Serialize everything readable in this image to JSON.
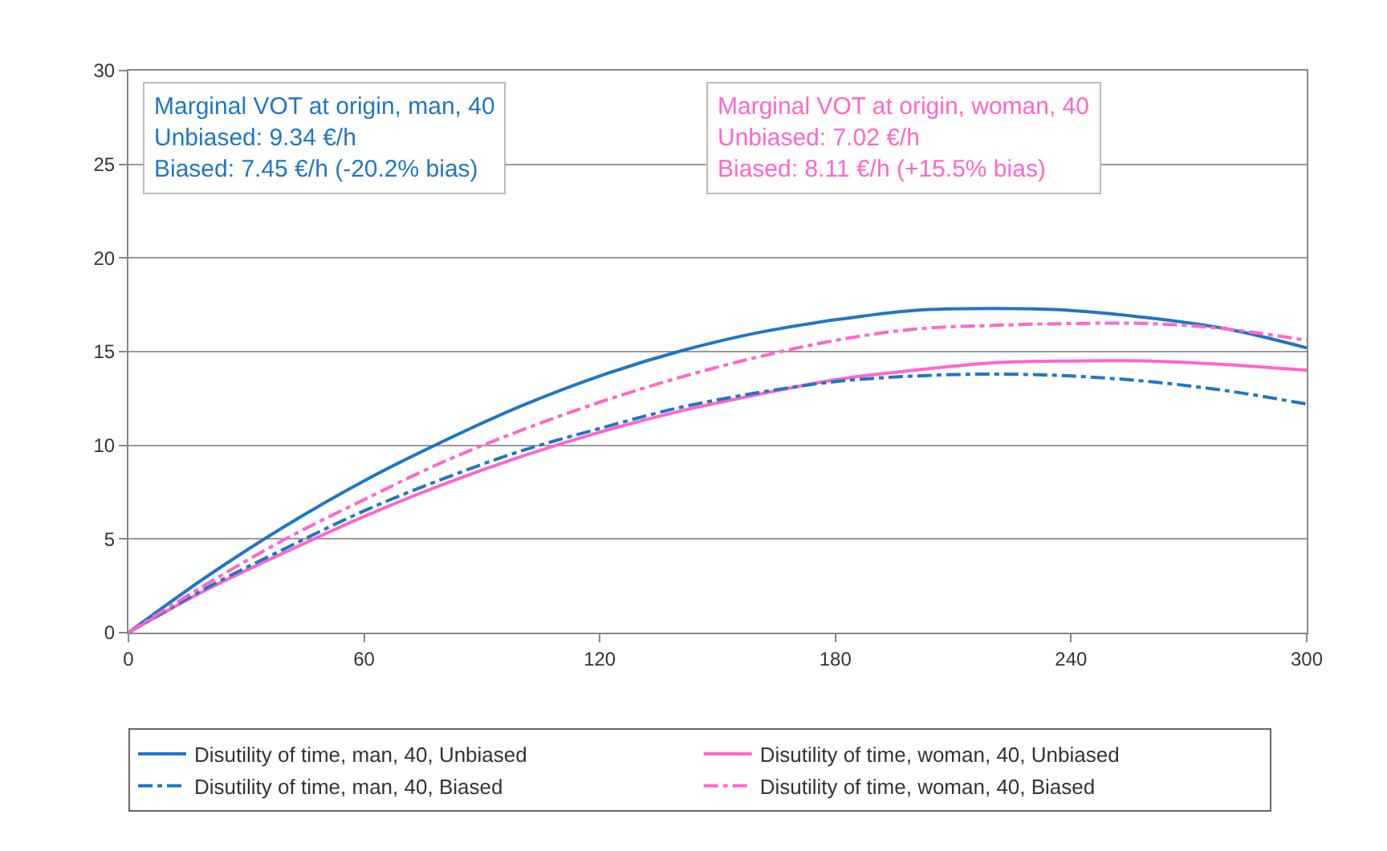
{
  "chart_data": {
    "type": "line",
    "x": [
      0,
      20,
      40,
      60,
      80,
      100,
      120,
      140,
      160,
      180,
      200,
      220,
      240,
      260,
      280,
      300
    ],
    "series": [
      {
        "name": "Disutility of time, man, 40, Unbiased",
        "color": "#1f77c4",
        "line_style": "solid",
        "values": [
          0,
          3.0,
          5.7,
          8.1,
          10.2,
          12.1,
          13.7,
          15.0,
          16.0,
          16.7,
          17.2,
          17.3,
          17.2,
          16.8,
          16.2,
          15.2
        ]
      },
      {
        "name": "Disutility of time, man, 40, Biased",
        "color": "#1f77c4",
        "line_style": "dashed",
        "values": [
          0,
          2.4,
          4.5,
          6.5,
          8.2,
          9.7,
          10.9,
          12.0,
          12.8,
          13.4,
          13.7,
          13.8,
          13.7,
          13.4,
          12.9,
          12.2
        ]
      },
      {
        "name": "Disutility of time, woman, 40, Unbiased",
        "color": "#ff66cc",
        "line_style": "solid",
        "values": [
          0,
          2.3,
          4.3,
          6.2,
          7.9,
          9.4,
          10.7,
          11.8,
          12.7,
          13.5,
          14.0,
          14.4,
          14.5,
          14.5,
          14.3,
          14.0
        ]
      },
      {
        "name": "Disutility of time, woman, 40, Biased",
        "color": "#ff66cc",
        "line_style": "dashed",
        "values": [
          0,
          2.6,
          5.0,
          7.1,
          9.1,
          10.8,
          12.3,
          13.6,
          14.7,
          15.6,
          16.2,
          16.4,
          16.5,
          16.5,
          16.2,
          15.6
        ]
      }
    ],
    "annotations": [
      "Marginal VOT at origin, man, 40\nUnbiased: 9.34 €/h\nBiased: 7.45 €/h (-20.2% bias)",
      "Marginal VOT at origin, woman, 40\nUnbiased: 7.02 €/h\nBiased: 8.11 €/h (+15.5% bias)"
    ],
    "xlim": [
      0,
      300
    ],
    "xticks": [
      0,
      60,
      120,
      180,
      240,
      300
    ],
    "ylim": [
      0,
      30
    ],
    "yticks": [
      0,
      5,
      10,
      15,
      20,
      25,
      30
    ],
    "grid": "y",
    "legend": "bottom",
    "marker": "none"
  }
}
